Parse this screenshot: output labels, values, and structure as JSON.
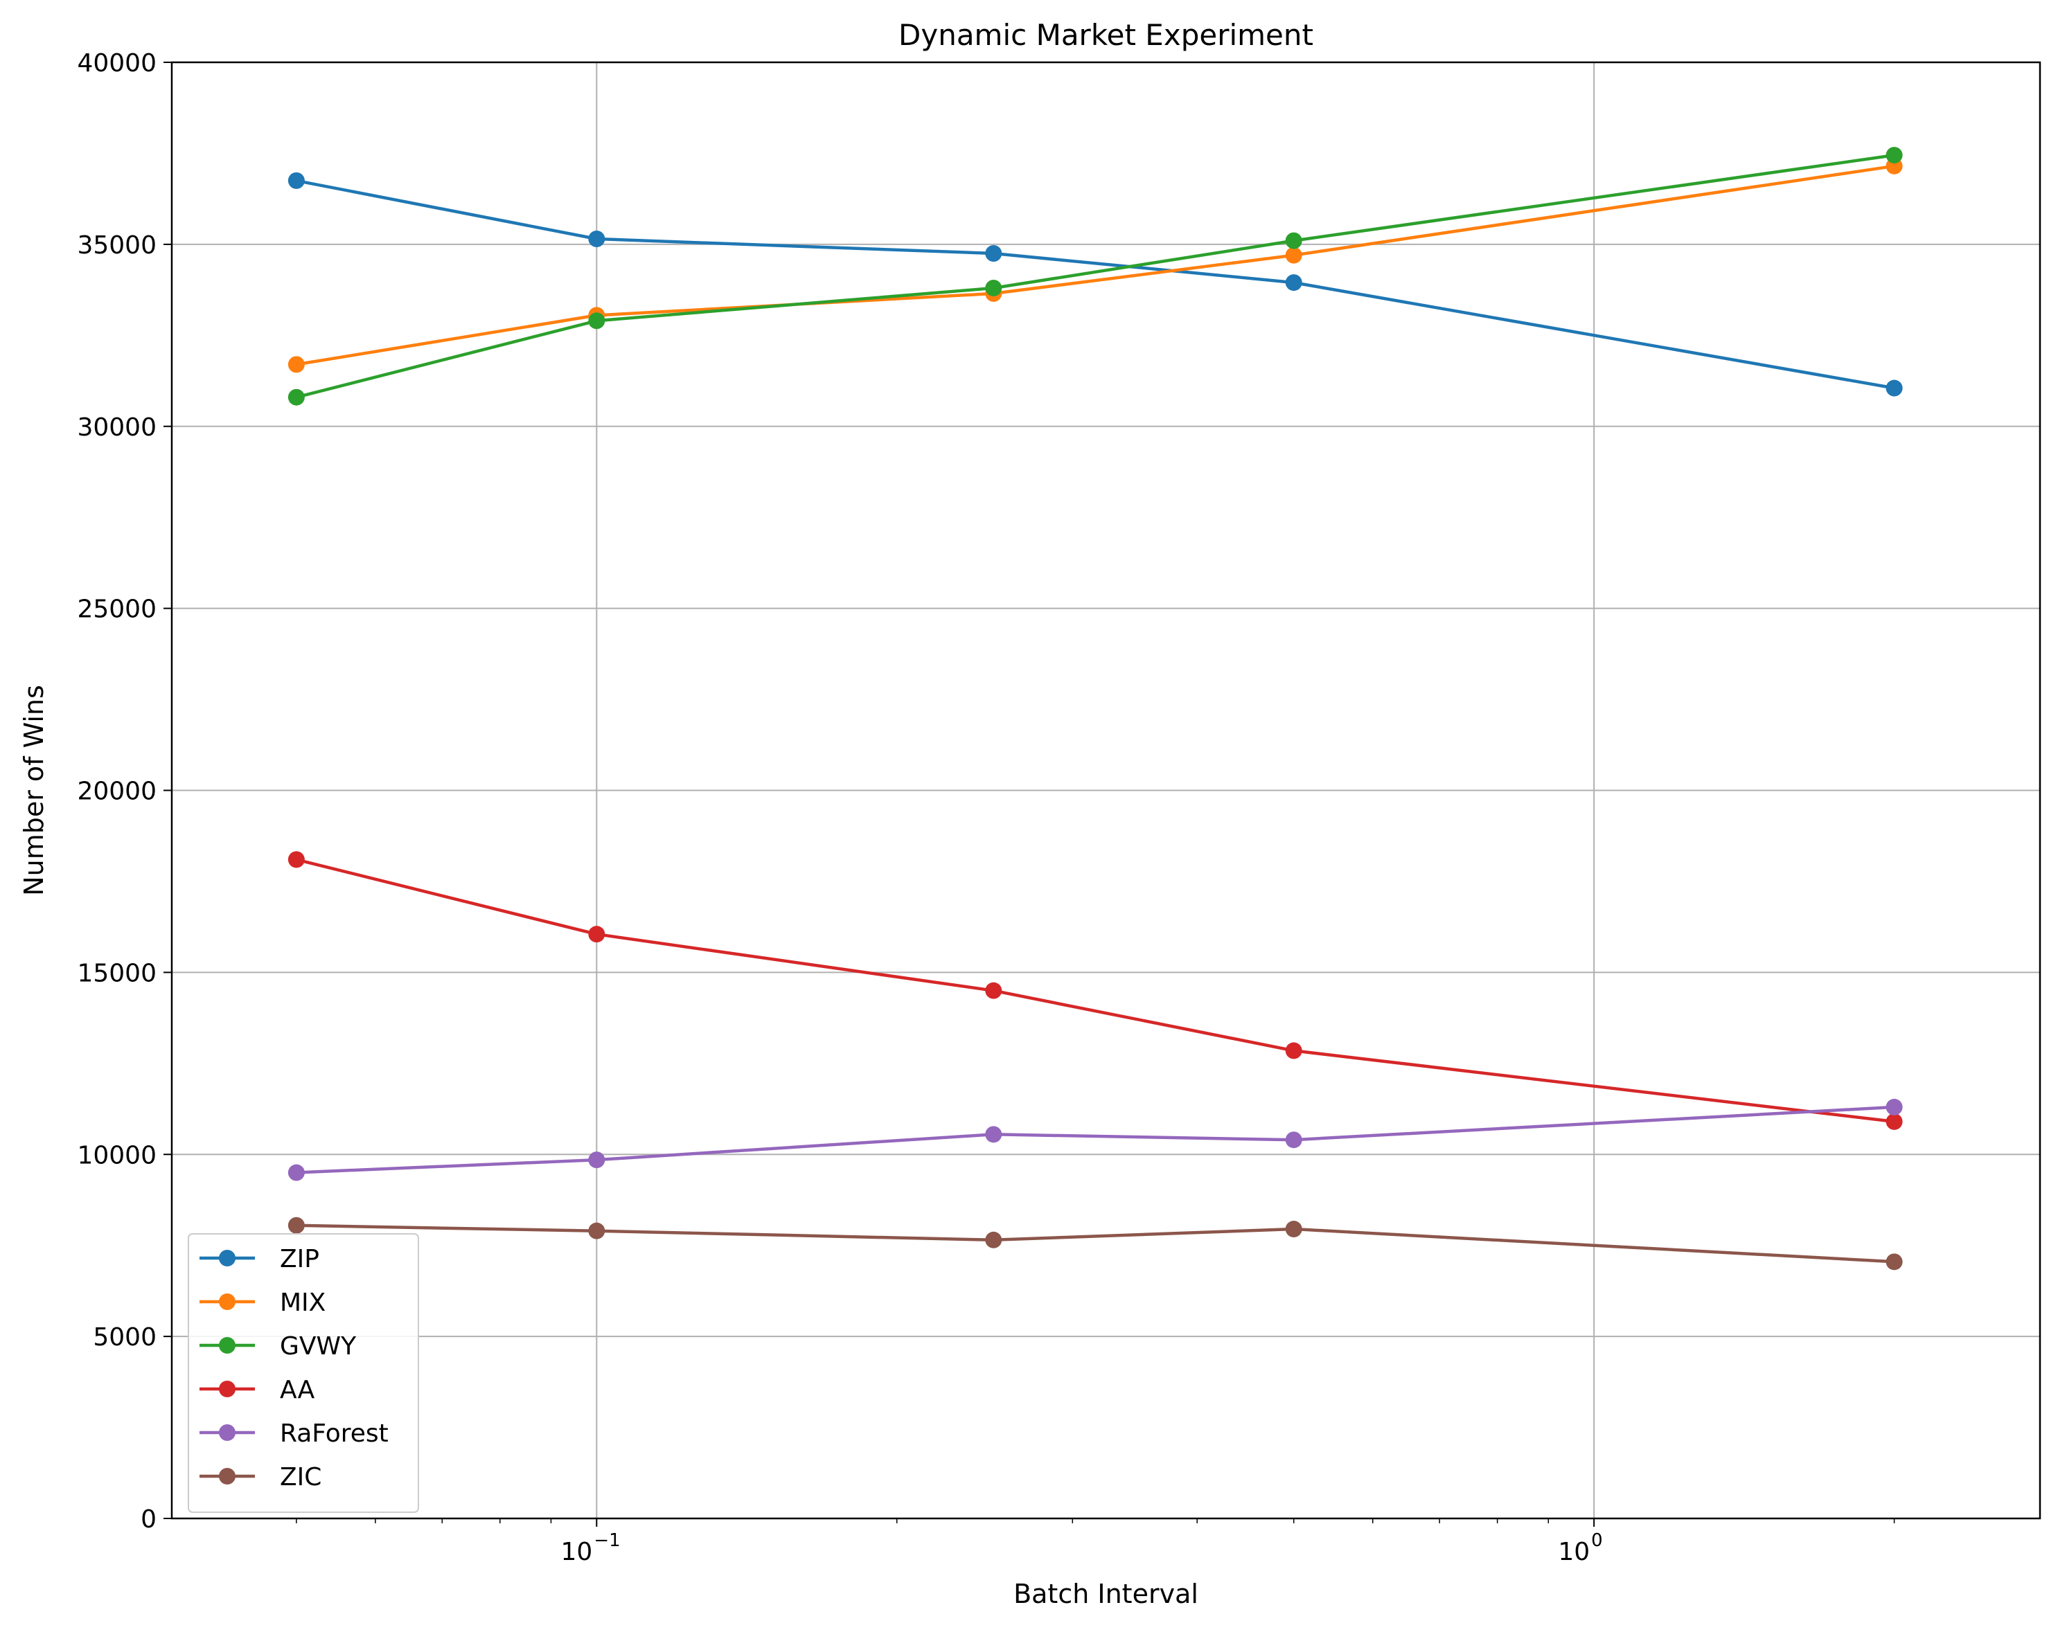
{
  "chart_data": {
    "type": "line",
    "title": "Dynamic Market Experiment",
    "xlabel": "Batch Interval",
    "ylabel": "Number of Wins",
    "x_scale": "log",
    "xlim": [
      0.0375,
      2.8
    ],
    "ylim": [
      0,
      40000
    ],
    "x": [
      0.05,
      0.1,
      0.25,
      0.5,
      2.0
    ],
    "y_ticks": [
      0,
      5000,
      10000,
      15000,
      20000,
      25000,
      30000,
      35000,
      40000
    ],
    "y_tick_labels": [
      "0",
      "5000",
      "10000",
      "15000",
      "20000",
      "25000",
      "30000",
      "35000",
      "40000"
    ],
    "x_major_ticks": [
      0.1,
      1
    ],
    "x_major_tick_labels": [
      {
        "base": "10",
        "exp": "−1"
      },
      {
        "base": "10",
        "exp": "0"
      }
    ],
    "x_minor_ticks": [
      0.05,
      0.06,
      0.07,
      0.08,
      0.09,
      0.2,
      0.3,
      0.4,
      0.5,
      0.6,
      0.7,
      0.8,
      0.9,
      2.0
    ],
    "grid": true,
    "legend_position": "lower-left",
    "series": [
      {
        "name": "ZIP",
        "color": "#1f77b4",
        "values": [
          36750,
          35150,
          34750,
          33950,
          31050
        ]
      },
      {
        "name": "MIX",
        "color": "#ff7f0e",
        "values": [
          31700,
          33050,
          33650,
          34700,
          37150
        ]
      },
      {
        "name": "GVWY",
        "color": "#2ca02c",
        "values": [
          30800,
          32900,
          33800,
          35100,
          37450
        ]
      },
      {
        "name": "AA",
        "color": "#d62728",
        "values": [
          18100,
          16050,
          14500,
          12850,
          10900
        ]
      },
      {
        "name": "RaForest",
        "color": "#9467bd",
        "values": [
          9500,
          9850,
          10550,
          10400,
          11300
        ]
      },
      {
        "name": "ZIC",
        "color": "#8c564b",
        "values": [
          8050,
          7900,
          7650,
          7950,
          7050
        ]
      }
    ]
  }
}
